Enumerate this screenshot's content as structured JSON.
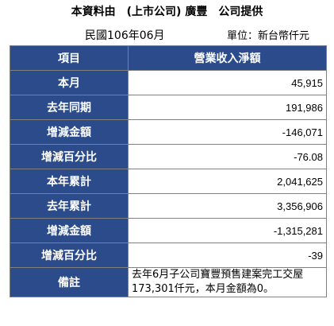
{
  "header": {
    "title": "本資料由　(上市公司) 廣豐　公司提供",
    "date": "民國106年06月",
    "unit": "單位：新台幣仟元"
  },
  "table": {
    "col_item": "項目",
    "col_value": "營業收入淨額",
    "rows": [
      {
        "label": "本月",
        "value": "45,915"
      },
      {
        "label": "去年同期",
        "value": "191,986"
      },
      {
        "label": "增減金額",
        "value": "-146,071"
      },
      {
        "label": "增減百分比",
        "value": "-76.08"
      },
      {
        "label": "本年累計",
        "value": "2,041,625"
      },
      {
        "label": "去年累計",
        "value": "3,356,906"
      },
      {
        "label": "增減金額",
        "value": "-1,315,281"
      },
      {
        "label": "增減百分比",
        "value": "-39"
      }
    ],
    "note_label": "備註",
    "note_text": "去年6月子公司寶豐預售建案完工交屋173,301仟元，本月金額為0。"
  },
  "colors": {
    "header_bg": "#2b4b8b",
    "header_text": "#ffffff",
    "border": "#808080"
  }
}
